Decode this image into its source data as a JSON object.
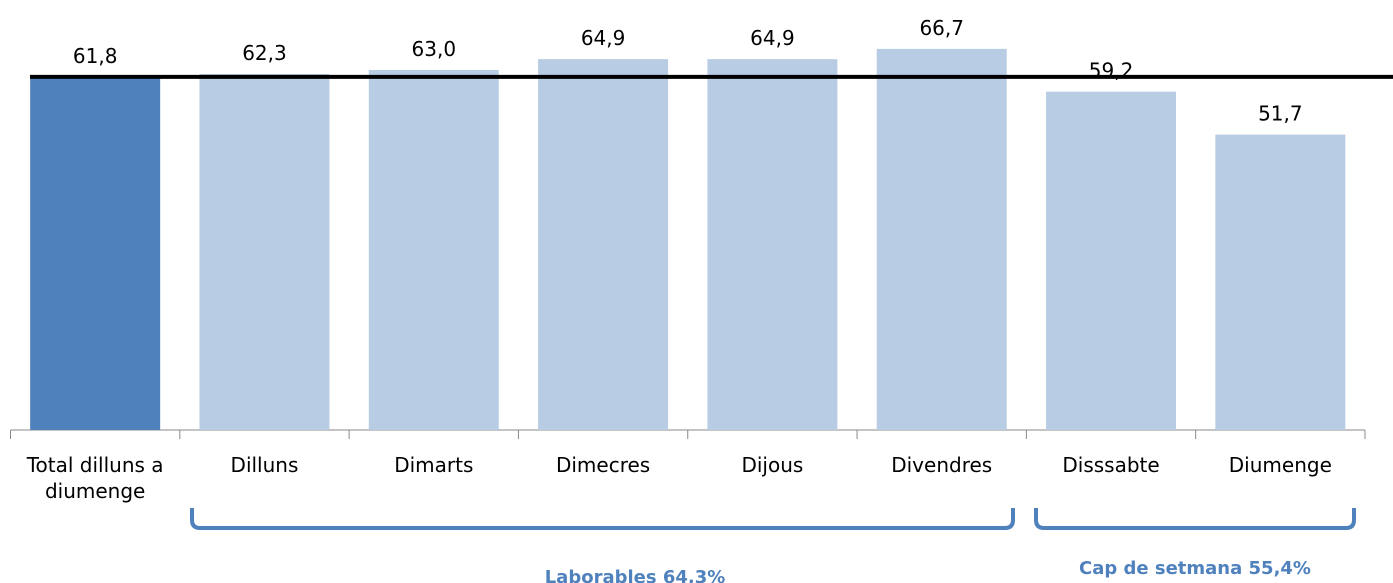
{
  "chart_data": {
    "type": "bar",
    "categories": [
      "Total dilluns a diumenge",
      "Dilluns",
      "Dimarts",
      "Dimecres",
      "Dijous",
      "Divendres",
      "Disssabte",
      "Diumenge"
    ],
    "values": [
      61.8,
      62.3,
      63.0,
      64.9,
      64.9,
      66.7,
      59.2,
      51.7
    ],
    "value_labels": [
      "61,8",
      "62,3",
      "63,0",
      "64,9",
      "64,9",
      "66,7",
      "59,2",
      "51,7"
    ],
    "colors": [
      "#4f81bd",
      "#b8cce4",
      "#b8cce4",
      "#b8cce4",
      "#b8cce4",
      "#b8cce4",
      "#b8cce4",
      "#b8cce4"
    ],
    "ylim": [
      0,
      70
    ],
    "annotations": [
      "Laborables 64,3%",
      "Cap de setmana 55,4%"
    ]
  }
}
